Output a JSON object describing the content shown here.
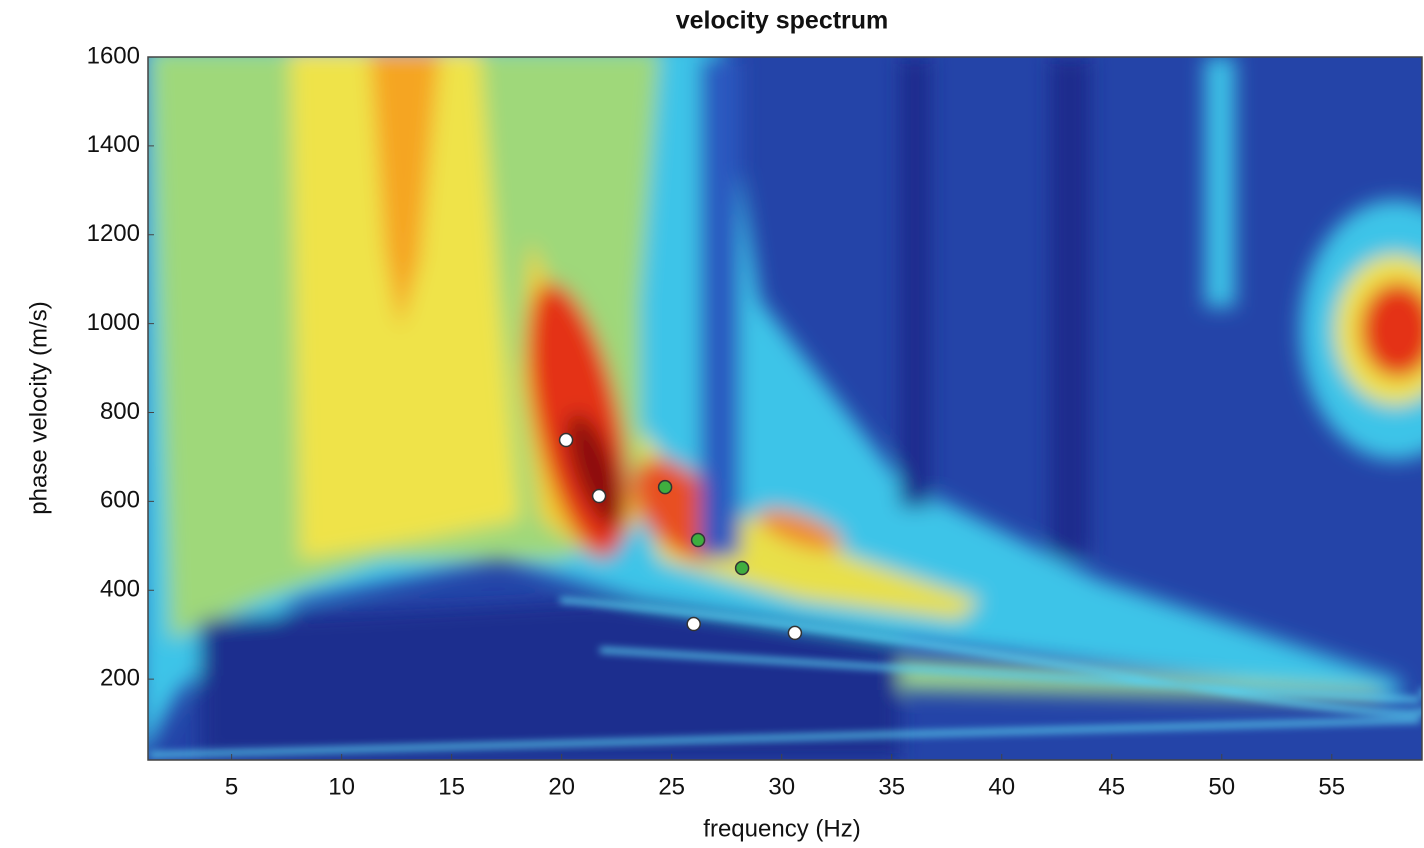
{
  "chart_data": {
    "type": "scatter",
    "title": "velocity spectrum",
    "x_label": "frequency (Hz)",
    "y_label": "phase velocity (m/s)",
    "xlim": [
      1.2,
      59.1
    ],
    "ylim": [
      18,
      1600
    ],
    "xticks": [
      5,
      10,
      15,
      20,
      25,
      30,
      35,
      40,
      45,
      50,
      55
    ],
    "yticks": [
      200,
      400,
      600,
      800,
      1000,
      1200,
      1400,
      1600
    ],
    "series": [
      {
        "color": "#ffffff",
        "x": [
          20.2,
          21.7,
          26.0,
          30.6
        ],
        "y": [
          738,
          612,
          324,
          304
        ]
      },
      {
        "color": "#3fae3f",
        "x": [
          24.7,
          26.2,
          28.2
        ],
        "y": [
          632,
          513,
          450
        ]
      }
    ]
  }
}
